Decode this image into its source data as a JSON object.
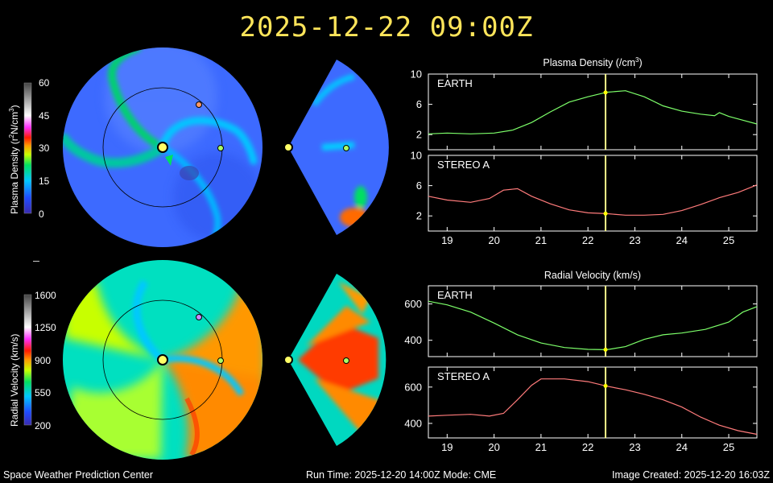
{
  "header": {
    "timestamp": "2025-12-22  09:00Z"
  },
  "colorbars": [
    {
      "label_main": "Plasma Density (r",
      "label_sup1": "2",
      "label_mid": "N/cm",
      "label_sup2": "3",
      "label_end": ")",
      "ticks": [
        "60",
        "45",
        "30",
        "15",
        "0"
      ]
    },
    {
      "label": "Radial Velocity (km/s)",
      "ticks": [
        "1600",
        "1250",
        "900",
        "550",
        "200"
      ]
    }
  ],
  "panel_titles": {
    "density_main": "Plasma Density (/cm",
    "density_sup": "3",
    "density_end": ")",
    "velocity": "Radial Velocity (km/s)"
  },
  "colors": {
    "earth": "#7dff6a",
    "stereo": "#ff7b7b",
    "marker": "#ffff66",
    "title": "#ffe55a"
  },
  "chart_data": [
    {
      "type": "line",
      "title": "Plasma Density (/cm³)",
      "series_label": "EARTH",
      "color": "#7dff6a",
      "xlim": [
        18.6,
        25.6
      ],
      "ylim": [
        0,
        10
      ],
      "yticks": [
        2,
        6,
        10
      ],
      "ytick_labels": [
        "2",
        "6",
        "10"
      ],
      "x": [
        18.6,
        19.0,
        19.5,
        20.0,
        20.4,
        20.8,
        21.2,
        21.6,
        22.0,
        22.4,
        22.8,
        23.2,
        23.6,
        24.0,
        24.4,
        24.7,
        24.8,
        25.0,
        25.3,
        25.6
      ],
      "y": [
        2.1,
        2.2,
        2.1,
        2.2,
        2.6,
        3.6,
        5.0,
        6.3,
        7.0,
        7.6,
        7.8,
        7.0,
        5.8,
        5.1,
        4.7,
        4.5,
        4.9,
        4.4,
        3.9,
        3.4
      ]
    },
    {
      "type": "line",
      "title": "",
      "series_label": "STEREO A",
      "color": "#ff7b7b",
      "xlim": [
        18.6,
        25.6
      ],
      "ylim": [
        0,
        10
      ],
      "yticks": [
        2,
        6,
        10
      ],
      "ytick_labels": [
        "2",
        "6",
        "10"
      ],
      "xticks": [
        19,
        20,
        21,
        22,
        23,
        24,
        25
      ],
      "xtick_labels": [
        "19",
        "20",
        "21",
        "22",
        "23",
        "24",
        "25"
      ],
      "x": [
        18.6,
        19.0,
        19.5,
        19.9,
        20.2,
        20.5,
        20.8,
        21.2,
        21.6,
        22.0,
        22.4,
        22.8,
        23.2,
        23.6,
        24.0,
        24.4,
        24.8,
        25.2,
        25.6
      ],
      "y": [
        4.6,
        4.1,
        3.8,
        4.3,
        5.4,
        5.6,
        4.6,
        3.6,
        2.8,
        2.4,
        2.3,
        2.1,
        2.1,
        2.2,
        2.7,
        3.5,
        4.4,
        5.1,
        6.1
      ]
    },
    {
      "type": "line",
      "title": "Radial Velocity (km/s)",
      "series_label": "EARTH",
      "color": "#7dff6a",
      "xlim": [
        18.6,
        25.6
      ],
      "ylim": [
        310,
        700
      ],
      "yticks": [
        400,
        600
      ],
      "ytick_labels": [
        "400",
        "600"
      ],
      "x": [
        18.6,
        19.0,
        19.5,
        20.0,
        20.5,
        21.0,
        21.5,
        22.0,
        22.4,
        22.8,
        23.2,
        23.6,
        24.0,
        24.5,
        25.0,
        25.3,
        25.6
      ],
      "y": [
        615,
        595,
        555,
        495,
        430,
        385,
        360,
        350,
        348,
        365,
        405,
        430,
        440,
        460,
        500,
        555,
        585
      ]
    },
    {
      "type": "line",
      "title": "",
      "series_label": "STEREO A",
      "color": "#ff7b7b",
      "xlim": [
        18.6,
        25.6
      ],
      "ylim": [
        320,
        710
      ],
      "yticks": [
        400,
        600
      ],
      "ytick_labels": [
        "400",
        "600"
      ],
      "xticks": [
        19,
        20,
        21,
        22,
        23,
        24,
        25
      ],
      "xtick_labels": [
        "19",
        "20",
        "21",
        "22",
        "23",
        "24",
        "25"
      ],
      "x": [
        18.6,
        19.0,
        19.5,
        19.9,
        20.2,
        20.5,
        20.8,
        21.0,
        21.5,
        22.0,
        22.4,
        22.8,
        23.2,
        23.6,
        24.0,
        24.4,
        24.8,
        25.2,
        25.6
      ],
      "y": [
        440,
        445,
        450,
        440,
        455,
        530,
        610,
        645,
        645,
        630,
        605,
        585,
        560,
        530,
        490,
        435,
        390,
        360,
        340
      ]
    }
  ],
  "time_marker": {
    "x": 22.375
  },
  "footer": {
    "left": "Space Weather Prediction Center",
    "center": "Run Time: 2025-12-20 14:00Z  Mode: CME",
    "right": "Image Created: 2025-12-20 16:03Z"
  }
}
